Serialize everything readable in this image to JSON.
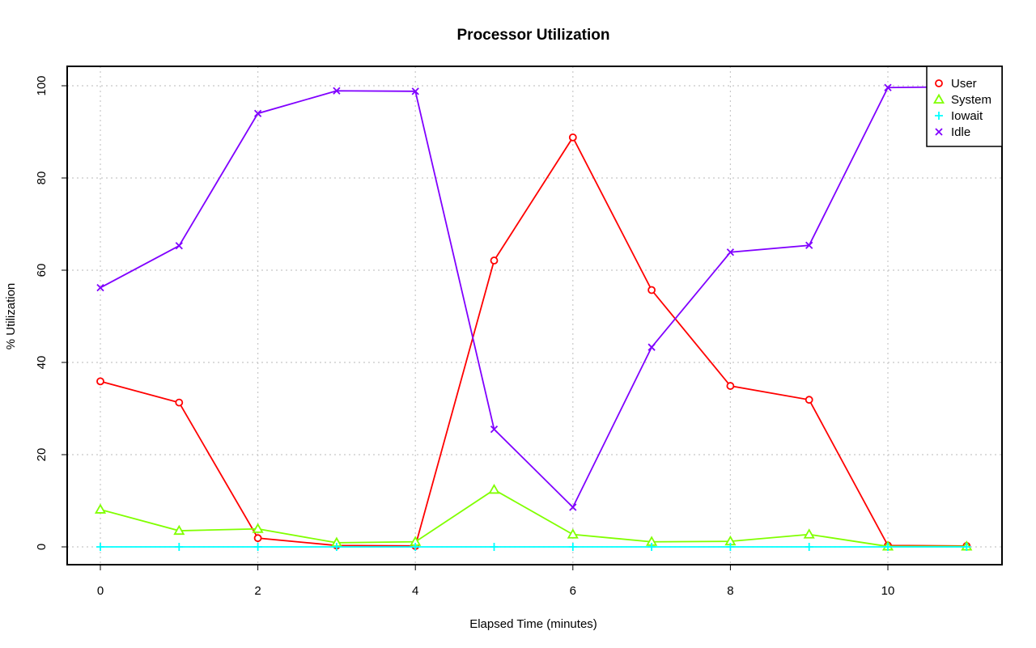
{
  "chart_data": {
    "type": "line",
    "title": "Processor Utilization",
    "xlabel": "Elapsed Time (minutes)",
    "ylabel": "% Utilization",
    "xlim": [
      0,
      11
    ],
    "ylim": [
      0,
      100
    ],
    "xticks": [
      0,
      2,
      4,
      6,
      8,
      10
    ],
    "yticks": [
      0,
      20,
      40,
      60,
      80,
      100
    ],
    "grid": true,
    "legend_position": "top-right",
    "x": [
      0,
      1,
      2,
      3,
      4,
      5,
      6,
      7,
      8,
      9,
      10,
      11
    ],
    "series": [
      {
        "name": "User",
        "color": "#ff0000",
        "marker": "circle",
        "values": [
          35.9,
          31.3,
          1.9,
          0.3,
          0.2,
          62.1,
          88.8,
          55.7,
          34.9,
          31.9,
          0.3,
          0.2
        ]
      },
      {
        "name": "System",
        "color": "#80ff00",
        "marker": "triangle",
        "values": [
          8.1,
          3.5,
          3.9,
          0.9,
          1.1,
          12.4,
          2.7,
          1.1,
          1.2,
          2.7,
          0.1,
          0.1
        ]
      },
      {
        "name": "Iowait",
        "color": "#00ffff",
        "marker": "plus",
        "values": [
          0,
          0,
          0,
          0,
          0,
          0,
          0,
          0,
          0,
          0,
          0,
          0
        ]
      },
      {
        "name": "Idle",
        "color": "#8000ff",
        "marker": "cross",
        "values": [
          56.2,
          65.3,
          94.0,
          98.9,
          98.8,
          25.5,
          8.6,
          43.3,
          63.9,
          65.4,
          99.6,
          99.8
        ]
      }
    ]
  }
}
